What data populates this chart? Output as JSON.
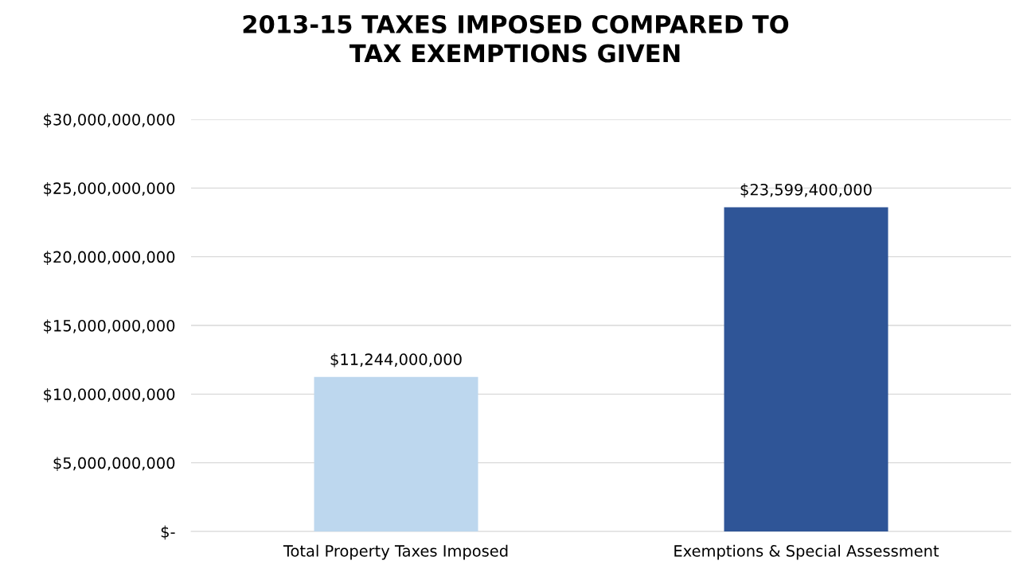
{
  "chart_data": {
    "type": "bar",
    "title": "2013-15 TAXES IMPOSED COMPARED TO\nTAX EXEMPTIONS GIVEN",
    "categories": [
      "Total Property Taxes Imposed",
      "Exemptions & Special Assessment"
    ],
    "values": [
      11244000000,
      23599400000
    ],
    "colors": [
      "#bdd7ee",
      "#2f5597"
    ],
    "value_labels": [
      "$11,244,000,000",
      "$23,599,400,000"
    ],
    "ylim": [
      0,
      30000000000
    ],
    "yticks": [
      {
        "value": 0,
        "label": "$-"
      },
      {
        "value": 5000000000,
        "label": "$5,000,000,000"
      },
      {
        "value": 10000000000,
        "label": "$10,000,000,000"
      },
      {
        "value": 15000000000,
        "label": "$15,000,000,000"
      },
      {
        "value": 20000000000,
        "label": "$20,000,000,000"
      },
      {
        "value": 25000000000,
        "label": "$25,000,000,000"
      },
      {
        "value": 30000000000,
        "label": "$30,000,000,000"
      }
    ],
    "grid": "y",
    "legend": false
  }
}
